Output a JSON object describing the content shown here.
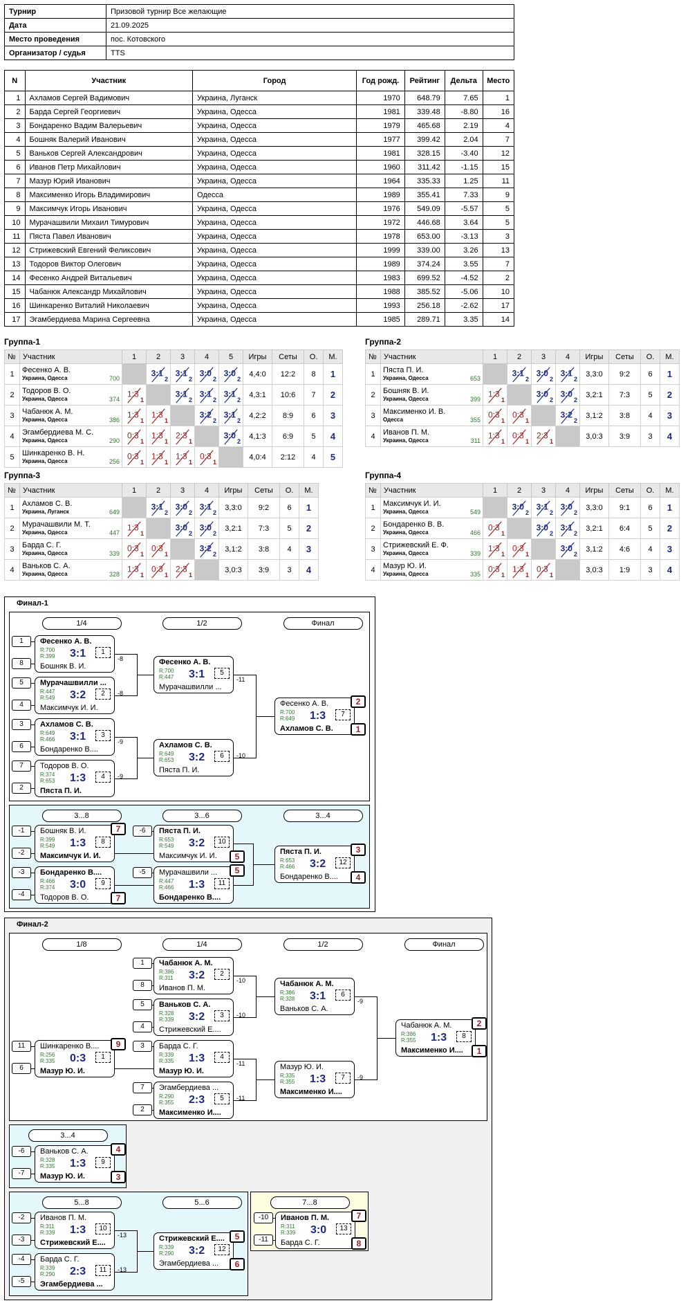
{
  "info": {
    "rows": [
      {
        "k": "Турнир",
        "v": "Призовой турнир Все желающие"
      },
      {
        "k": "Дата",
        "v": "21.09.2025"
      },
      {
        "k": "Место проведения",
        "v": "пос. Котовского"
      },
      {
        "k": "Организатор / судья",
        "v": "TTS"
      }
    ]
  },
  "players": {
    "headers": [
      "N",
      "Участник",
      "Город",
      "Год рожд.",
      "Рейтинг",
      "Дельта",
      "Место"
    ],
    "rows": [
      [
        "1",
        "Ахламов Сергей Вадимович",
        "Украина, Луганск",
        "1970",
        "648.79",
        "7.65",
        "1"
      ],
      [
        "2",
        "Барда Сергей Георгиевич",
        "Украина, Одесса",
        "1981",
        "339.48",
        "-8.80",
        "16"
      ],
      [
        "3",
        "Бондаренко Вадим Валерьевич",
        "Украина, Одесса",
        "1979",
        "465.68",
        "2.19",
        "4"
      ],
      [
        "4",
        "Бошняк Валерий Иванович",
        "Украина, Одесса",
        "1977",
        "399.42",
        "2.04",
        "7"
      ],
      [
        "5",
        "Ваньков Сергей Александрович",
        "Украина, Одесса",
        "1981",
        "328.15",
        "-3.40",
        "12"
      ],
      [
        "6",
        "Иванов Петр Михайлович",
        "Украина, Одесса",
        "1960",
        "311.42",
        "-1.15",
        "15"
      ],
      [
        "7",
        "Мазур Юрий Иванович",
        "Украина, Одесса",
        "1964",
        "335.33",
        "1.25",
        "11"
      ],
      [
        "8",
        "Максименко Игорь Владимирович",
        "Одесса",
        "1989",
        "355.41",
        "7.33",
        "9"
      ],
      [
        "9",
        "Максимчук Игорь Иванович",
        "Украина, Одесса",
        "1976",
        "549.09",
        "-5.57",
        "5"
      ],
      [
        "10",
        "Мурачашвили Михаил Тимурович",
        "Украина, Одесса",
        "1972",
        "446.68",
        "3.64",
        "5"
      ],
      [
        "11",
        "Пяста Павел Иванович",
        "Украина, Одесса",
        "1978",
        "653.00",
        "-3.13",
        "3"
      ],
      [
        "12",
        "Стрижевский Евгений Феликсович",
        "Украина, Одесса",
        "1999",
        "339.00",
        "3.26",
        "13"
      ],
      [
        "13",
        "Тодоров Виктор Олегович",
        "Украина, Одесса",
        "1989",
        "374.24",
        "3.55",
        "7"
      ],
      [
        "14",
        "Фесенко Андрей Витальевич",
        "Украина, Одесса",
        "1983",
        "699.52",
        "-4.52",
        "2"
      ],
      [
        "15",
        "Чабанюк Александр Михайлович",
        "Украина, Одесса",
        "1988",
        "385.52",
        "-5.06",
        "10"
      ],
      [
        "16",
        "Шинкаренко Виталий Николаевич",
        "Украина, Одесса",
        "1993",
        "256.18",
        "-2.62",
        "17"
      ],
      [
        "17",
        "Эгамбердиева Марина Сергеевна",
        "Украина, Одесса",
        "1985",
        "289.71",
        "3.35",
        "14"
      ]
    ]
  },
  "groups": [
    {
      "title": "Группа-1",
      "cols": [
        "№",
        "Участник",
        "1",
        "2",
        "3",
        "4",
        "5",
        "Игры",
        "Сеты",
        "О.",
        "М."
      ],
      "rows": [
        {
          "n": "1",
          "name": "Фесенко А. В.",
          "city": "Украина, Одесса",
          "rating": "700",
          "cells": [
            "",
            "3:1|2",
            "3:1|2",
            "3:0|2",
            "3:0|2"
          ],
          "games": "4,4:0",
          "sets": "12:2",
          "pts": "8",
          "place": "1"
        },
        {
          "n": "2",
          "name": "Тодоров В. О.",
          "city": "Украина, Одесса",
          "rating": "374",
          "cells": [
            "1:3|1",
            "",
            "3:1|2",
            "3:1|2",
            "3:1|2"
          ],
          "games": "4,3:1",
          "sets": "10:6",
          "pts": "7",
          "place": "2"
        },
        {
          "n": "3",
          "name": "Чабанюк А. М.",
          "city": "Украина, Одесса",
          "rating": "386",
          "cells": [
            "1:3|1",
            "1:3|1",
            "",
            "3:2|2",
            "3:1|2"
          ],
          "games": "4,2:2",
          "sets": "8:9",
          "pts": "6",
          "place": "3"
        },
        {
          "n": "4",
          "name": "Эгамбердиева М. С.",
          "city": "Украина, Одесса",
          "rating": "290",
          "cells": [
            "0:3|1",
            "1:3|1",
            "2:3|1",
            "",
            "3:0|2"
          ],
          "games": "4,1:3",
          "sets": "6:9",
          "pts": "5",
          "place": "4"
        },
        {
          "n": "5",
          "name": "Шинкаренко В. Н.",
          "city": "Украина, Одесса",
          "rating": "256",
          "cells": [
            "0:3|1",
            "1:3|1",
            "1:3|1",
            "0:3|1",
            ""
          ],
          "games": "4,0:4",
          "sets": "2:12",
          "pts": "4",
          "place": "5"
        }
      ]
    },
    {
      "title": "Группа-2",
      "cols": [
        "№",
        "Участник",
        "1",
        "2",
        "3",
        "4",
        "Игры",
        "Сеты",
        "О.",
        "М."
      ],
      "rows": [
        {
          "n": "1",
          "name": "Пяста П. И.",
          "city": "Украина, Одесса",
          "rating": "653",
          "cells": [
            "",
            "3:1|2",
            "3:0|2",
            "3:1|2"
          ],
          "games": "3,3:0",
          "sets": "9:2",
          "pts": "6",
          "place": "1"
        },
        {
          "n": "2",
          "name": "Бошняк В. И.",
          "city": "Украина, Одесса",
          "rating": "399",
          "cells": [
            "1:3|1",
            "",
            "3:0|2",
            "3:0|2"
          ],
          "games": "3,2:1",
          "sets": "7:3",
          "pts": "5",
          "place": "2"
        },
        {
          "n": "3",
          "name": "Максименко И. В.",
          "city": "Одесса",
          "rating": "355",
          "cells": [
            "0:3|1",
            "0:3|1",
            "",
            "3:2|2"
          ],
          "games": "3,1:2",
          "sets": "3:8",
          "pts": "4",
          "place": "3"
        },
        {
          "n": "4",
          "name": "Иванов П. М.",
          "city": "Украина, Одесса",
          "rating": "311",
          "cells": [
            "1:3|1",
            "0:3|1",
            "2:3|1",
            ""
          ],
          "games": "3,0:3",
          "sets": "3:9",
          "pts": "3",
          "place": "4"
        }
      ]
    },
    {
      "title": "Группа-3",
      "cols": [
        "№",
        "Участник",
        "1",
        "2",
        "3",
        "4",
        "Игры",
        "Сеты",
        "О.",
        "М."
      ],
      "rows": [
        {
          "n": "1",
          "name": "Ахламов С. В.",
          "city": "Украина, Луганск",
          "rating": "649",
          "cells": [
            "",
            "3:1|2",
            "3:0|2",
            "3:1|2"
          ],
          "games": "3,3:0",
          "sets": "9:2",
          "pts": "6",
          "place": "1"
        },
        {
          "n": "2",
          "name": "Мурачашвили М. Т.",
          "city": "Украина, Одесса",
          "rating": "447",
          "cells": [
            "1:3|1",
            "",
            "3:0|2",
            "3:0|2"
          ],
          "games": "3,2:1",
          "sets": "7:3",
          "pts": "5",
          "place": "2"
        },
        {
          "n": "3",
          "name": "Барда С. Г.",
          "city": "Украина, Одесса",
          "rating": "339",
          "cells": [
            "0:3|1",
            "0:3|1",
            "",
            "3:2|2"
          ],
          "games": "3,1:2",
          "sets": "3:8",
          "pts": "4",
          "place": "3"
        },
        {
          "n": "4",
          "name": "Ваньков С. А.",
          "city": "Украина, Одесса",
          "rating": "328",
          "cells": [
            "1:3|1",
            "0:3|1",
            "2:3|1",
            ""
          ],
          "games": "3,0:3",
          "sets": "3:9",
          "pts": "3",
          "place": "4"
        }
      ]
    },
    {
      "title": "Группа-4",
      "cols": [
        "№",
        "Участник",
        "1",
        "2",
        "3",
        "4",
        "Игры",
        "Сеты",
        "О.",
        "М."
      ],
      "rows": [
        {
          "n": "1",
          "name": "Максимчук И. И.",
          "city": "Украина, Одесса",
          "rating": "549",
          "cells": [
            "",
            "3:0|2",
            "3:1|2",
            "3:0|2"
          ],
          "games": "3,3:0",
          "sets": "9:1",
          "pts": "6",
          "place": "1"
        },
        {
          "n": "2",
          "name": "Бондаренко В. В.",
          "city": "Украина, Одесса",
          "rating": "466",
          "cells": [
            "0:3|1",
            "",
            "3:0|2",
            "3:1|2"
          ],
          "games": "3,2:1",
          "sets": "6:4",
          "pts": "5",
          "place": "2"
        },
        {
          "n": "3",
          "name": "Стрижевский Е. Ф.",
          "city": "Украина, Одесса",
          "rating": "339",
          "cells": [
            "1:3|1",
            "0:3|1",
            "",
            "3:0|2"
          ],
          "games": "3,1:2",
          "sets": "4:6",
          "pts": "4",
          "place": "3"
        },
        {
          "n": "4",
          "name": "Мазур Ю. И.",
          "city": "Украина, Одесса",
          "rating": "335",
          "cells": [
            "0:3|1",
            "1:3|1",
            "0:3|1",
            ""
          ],
          "games": "3,0:3",
          "sets": "1:9",
          "pts": "3",
          "place": "4"
        }
      ]
    }
  ],
  "final1": {
    "title": "Финал-1",
    "main": {
      "rounds": [
        "1/4",
        "1/2",
        "Финал"
      ],
      "seeds": [
        "1",
        "8",
        "5",
        "4",
        "3",
        "6",
        "7",
        "2"
      ],
      "matches": [
        {
          "p1": "Фесенко А. В.",
          "r1": "R:700",
          "p2": "Бошняк В. И.",
          "r2": "R:399",
          "score": "3:1",
          "num": "1",
          "win": 1,
          "loser_to": "-8"
        },
        {
          "p1": "Мурачашвилли ...",
          "r1": "R:447",
          "p2": "Максимчук И. И.",
          "r2": "R:549",
          "score": "3:2",
          "num": "2",
          "win": 1,
          "loser_to": "-8"
        },
        {
          "p1": "Ахламов С. В.",
          "r1": "R:649",
          "p2": "Бондаренко В....",
          "r2": "R:466",
          "score": "3:1",
          "num": "3",
          "win": 1,
          "loser_to": "-9"
        },
        {
          "p1": "Тодоров В. О.",
          "r1": "R:374",
          "p2": "Пяста П. И.",
          "r2": "R:653",
          "score": "1:3",
          "num": "4",
          "win": 2,
          "loser_to": "-9"
        },
        {
          "p1": "Фесенко А. В.",
          "r1": "R:700",
          "p2": "Мурачашвилли ...",
          "r2": "R:447",
          "score": "3:1",
          "num": "5",
          "win": 1,
          "loser_to": "-11"
        },
        {
          "p1": "Ахламов С. В.",
          "r1": "R:649",
          "p2": "Пяста П. И.",
          "r2": "R:653",
          "score": "3:2",
          "num": "6",
          "win": 1,
          "loser_to": "-10"
        },
        {
          "p1": "Фесенко А. В.",
          "r1": "R:700",
          "p2": "Ахламов С. В.",
          "r2": "R:649",
          "score": "1:3",
          "num": "7",
          "win": 2,
          "place1": "2",
          "place2": "1"
        }
      ]
    },
    "cons": {
      "rounds": [
        "3...8",
        "3...6",
        "3...4"
      ],
      "seeds": [
        "-1",
        "-2",
        "-3",
        "-4",
        "-6",
        "-5"
      ],
      "matches": [
        {
          "p1": "Бошняк В. И.",
          "r1": "R:399",
          "p2": "Максимчук И. И.",
          "r2": "R:549",
          "score": "1:3",
          "num": "8",
          "win": 2,
          "place1": "7"
        },
        {
          "p1": "Бондаренко В....",
          "r1": "R:466",
          "p2": "Тодоров В. О.",
          "r2": "R:374",
          "score": "3:0",
          "num": "9",
          "win": 1,
          "place2": "7"
        },
        {
          "p1": "Пяста П. И.",
          "r1": "R:653",
          "p2": "Максимчук И. И.",
          "r2": "R:549",
          "score": "3:2",
          "num": "10",
          "win": 1,
          "place2": "5"
        },
        {
          "p1": "Мурачашвили ...",
          "r1": "R:447",
          "p2": "Бондаренко В....",
          "r2": "R:466",
          "score": "1:3",
          "num": "11",
          "win": 2,
          "place1": "5"
        },
        {
          "p1": "Пяста П. И.",
          "r1": "R:653",
          "p2": "Бондаренко В....",
          "r2": "R:466",
          "score": "3:2",
          "num": "12",
          "win": 1,
          "place1": "3",
          "place2": "4"
        }
      ]
    }
  },
  "final2": {
    "title": "Финал-2",
    "main": {
      "rounds": [
        "1/8",
        "1/4",
        "1/2",
        "Финал"
      ],
      "seeds": [
        "1",
        "8",
        "5",
        "4",
        "3",
        "7",
        "2",
        "11",
        "6"
      ],
      "matches": [
        {
          "p1": "Шинкаренко В....",
          "r1": "R:256",
          "p2": "Мазур Ю. И.",
          "r2": "R:335",
          "score": "0:3",
          "num": "1",
          "win": 2,
          "place1": "9"
        },
        {
          "p1": "Чабанюк А. М.",
          "r1": "R:386",
          "p2": "Иванов П. М.",
          "r2": "R:311",
          "score": "3:2",
          "num": "2",
          "win": 1,
          "loser_to": "-10"
        },
        {
          "p1": "Ваньков С. А.",
          "r1": "R:328",
          "p2": "Стрижевский Е....",
          "r2": "R:339",
          "score": "3:2",
          "num": "3",
          "win": 1,
          "loser_to": "-10"
        },
        {
          "p1": "Барда С. Г.",
          "r1": "R:339",
          "p2": "Мазур Ю. И.",
          "r2": "R:335",
          "score": "1:3",
          "num": "4",
          "win": 2,
          "loser_to": "-11"
        },
        {
          "p1": "Эгамбердиева ...",
          "r1": "R:290",
          "p2": "Максименко И....",
          "r2": "R:355",
          "score": "2:3",
          "num": "5",
          "win": 2,
          "loser_to": "-11"
        },
        {
          "p1": "Чабанюк А. М.",
          "r1": "R:386",
          "p2": "Ваньков С. А.",
          "r2": "R:328",
          "score": "3:1",
          "num": "6",
          "win": 1,
          "loser_to": "-9"
        },
        {
          "p1": "Мазур Ю. И.",
          "r1": "R:335",
          "p2": "Максименко И....",
          "r2": "R:355",
          "score": "1:3",
          "num": "7",
          "win": 2,
          "loser_to": "-9"
        },
        {
          "p1": "Чабанюк А. М.",
          "r1": "R:386",
          "p2": "Максименко И....",
          "r2": "R:355",
          "score": "1:3",
          "num": "8",
          "win": 2,
          "place1": "2",
          "place2": "1"
        }
      ]
    },
    "p34": {
      "round": "3...4",
      "seeds": [
        "-6",
        "-7"
      ],
      "match": {
        "p1": "Ваньков С. А.",
        "r1": "R:328",
        "p2": "Мазур Ю. И.",
        "r2": "R:335",
        "score": "1:3",
        "num": "9",
        "win": 2,
        "place1": "4",
        "place2": "3"
      }
    },
    "p58": {
      "rounds": [
        "5...8",
        "5...6"
      ],
      "seeds": [
        "-2",
        "-3",
        "-4",
        "-5"
      ],
      "matches": [
        {
          "p1": "Иванов П. М.",
          "r1": "R:311",
          "p2": "Стрижевский Е....",
          "r2": "R:339",
          "score": "1:3",
          "num": "10",
          "win": 2,
          "loser_to": "-13"
        },
        {
          "p1": "Барда С. Г.",
          "r1": "R:339",
          "p2": "Эгамбердиева ...",
          "r2": "R:290",
          "score": "2:3",
          "num": "11",
          "win": 2,
          "loser_to": "-13"
        },
        {
          "p1": "Стрижевский Е....",
          "r1": "R:339",
          "p2": "Эгамбердиева ...",
          "r2": "R:290",
          "score": "3:2",
          "num": "12",
          "win": 1,
          "place1": "5",
          "place2": "6"
        }
      ]
    },
    "p78": {
      "round": "7...8",
      "seeds": [
        "-10",
        "-11"
      ],
      "match": {
        "p1": "Иванов П. М.",
        "r1": "R:311",
        "p2": "Барда С. Г.",
        "r2": "R:339",
        "score": "3:0",
        "num": "13",
        "win": 1,
        "place1": "7",
        "place2": "8"
      }
    }
  }
}
